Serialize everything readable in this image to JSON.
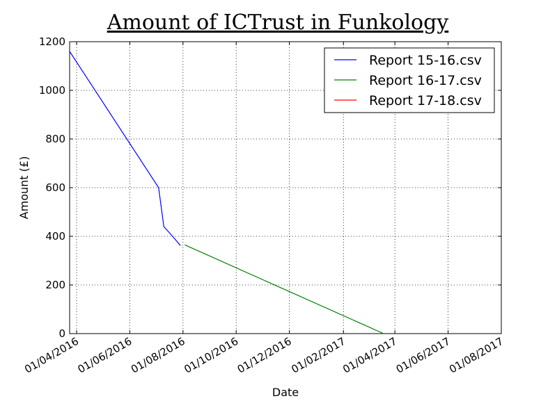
{
  "chart_data": {
    "type": "line",
    "title": "Amount of ICTrust in Funkology",
    "xlabel": "Date",
    "ylabel": "Amount (£)",
    "x_type": "date",
    "xlim": [
      "2016-03-24",
      "2017-08-01"
    ],
    "ylim": [
      0,
      1200
    ],
    "x_ticks": [
      {
        "date": "2016-04-01",
        "label": "01/04/2016"
      },
      {
        "date": "2016-06-01",
        "label": "01/06/2016"
      },
      {
        "date": "2016-08-01",
        "label": "01/08/2016"
      },
      {
        "date": "2016-10-01",
        "label": "01/10/2016"
      },
      {
        "date": "2016-12-01",
        "label": "01/12/2016"
      },
      {
        "date": "2017-02-01",
        "label": "01/02/2017"
      },
      {
        "date": "2017-04-01",
        "label": "01/04/2017"
      },
      {
        "date": "2017-06-01",
        "label": "01/06/2017"
      },
      {
        "date": "2017-08-01",
        "label": "01/08/2017"
      }
    ],
    "y_ticks": [
      0,
      200,
      400,
      600,
      800,
      1000,
      1200
    ],
    "grid": true,
    "legend_position": "top-right",
    "series": [
      {
        "name": "Report 15-16.csv",
        "color": "#0000ff",
        "points": [
          {
            "x": "2016-03-24",
            "y": 1160
          },
          {
            "x": "2016-07-04",
            "y": 600
          },
          {
            "x": "2016-07-10",
            "y": 440
          },
          {
            "x": "2016-07-20",
            "y": 400
          },
          {
            "x": "2016-07-29",
            "y": 362
          }
        ]
      },
      {
        "name": "Report 16-17.csv",
        "color": "#008000",
        "points": [
          {
            "x": "2016-08-03",
            "y": 365
          },
          {
            "x": "2017-03-19",
            "y": 0
          }
        ]
      },
      {
        "name": "Report 17-18.csv",
        "color": "#ff0000",
        "points": []
      }
    ]
  }
}
